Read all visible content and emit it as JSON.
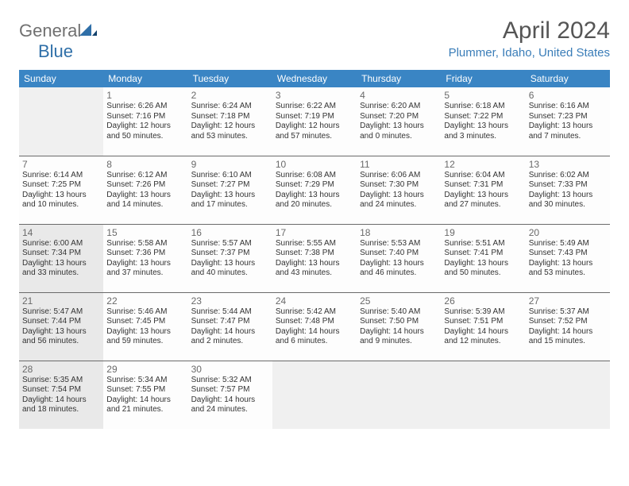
{
  "brand": {
    "general": "General",
    "blue": "Blue"
  },
  "title": "April 2024",
  "location": "Plummer, Idaho, United States",
  "colors": {
    "header_bg": "#3a85c4",
    "accent": "#3a7db8",
    "shaded_bg": "#e9e9e9",
    "rule": "#6a6a6a"
  },
  "weekdays": [
    "Sunday",
    "Monday",
    "Tuesday",
    "Wednesday",
    "Thursday",
    "Friday",
    "Saturday"
  ],
  "cells": [
    {
      "blank": true
    },
    {
      "day": "1",
      "sunrise": "Sunrise: 6:26 AM",
      "sunset": "Sunset: 7:16 PM",
      "daylight": "Daylight: 12 hours and 50 minutes."
    },
    {
      "day": "2",
      "sunrise": "Sunrise: 6:24 AM",
      "sunset": "Sunset: 7:18 PM",
      "daylight": "Daylight: 12 hours and 53 minutes."
    },
    {
      "day": "3",
      "sunrise": "Sunrise: 6:22 AM",
      "sunset": "Sunset: 7:19 PM",
      "daylight": "Daylight: 12 hours and 57 minutes."
    },
    {
      "day": "4",
      "sunrise": "Sunrise: 6:20 AM",
      "sunset": "Sunset: 7:20 PM",
      "daylight": "Daylight: 13 hours and 0 minutes."
    },
    {
      "day": "5",
      "sunrise": "Sunrise: 6:18 AM",
      "sunset": "Sunset: 7:22 PM",
      "daylight": "Daylight: 13 hours and 3 minutes."
    },
    {
      "day": "6",
      "sunrise": "Sunrise: 6:16 AM",
      "sunset": "Sunset: 7:23 PM",
      "daylight": "Daylight: 13 hours and 7 minutes."
    },
    {
      "day": "7",
      "sunrise": "Sunrise: 6:14 AM",
      "sunset": "Sunset: 7:25 PM",
      "daylight": "Daylight: 13 hours and 10 minutes."
    },
    {
      "day": "8",
      "sunrise": "Sunrise: 6:12 AM",
      "sunset": "Sunset: 7:26 PM",
      "daylight": "Daylight: 13 hours and 14 minutes."
    },
    {
      "day": "9",
      "sunrise": "Sunrise: 6:10 AM",
      "sunset": "Sunset: 7:27 PM",
      "daylight": "Daylight: 13 hours and 17 minutes."
    },
    {
      "day": "10",
      "sunrise": "Sunrise: 6:08 AM",
      "sunset": "Sunset: 7:29 PM",
      "daylight": "Daylight: 13 hours and 20 minutes."
    },
    {
      "day": "11",
      "sunrise": "Sunrise: 6:06 AM",
      "sunset": "Sunset: 7:30 PM",
      "daylight": "Daylight: 13 hours and 24 minutes."
    },
    {
      "day": "12",
      "sunrise": "Sunrise: 6:04 AM",
      "sunset": "Sunset: 7:31 PM",
      "daylight": "Daylight: 13 hours and 27 minutes."
    },
    {
      "day": "13",
      "sunrise": "Sunrise: 6:02 AM",
      "sunset": "Sunset: 7:33 PM",
      "daylight": "Daylight: 13 hours and 30 minutes."
    },
    {
      "day": "14",
      "sunrise": "Sunrise: 6:00 AM",
      "sunset": "Sunset: 7:34 PM",
      "daylight": "Daylight: 13 hours and 33 minutes.",
      "shaded": true
    },
    {
      "day": "15",
      "sunrise": "Sunrise: 5:58 AM",
      "sunset": "Sunset: 7:36 PM",
      "daylight": "Daylight: 13 hours and 37 minutes."
    },
    {
      "day": "16",
      "sunrise": "Sunrise: 5:57 AM",
      "sunset": "Sunset: 7:37 PM",
      "daylight": "Daylight: 13 hours and 40 minutes."
    },
    {
      "day": "17",
      "sunrise": "Sunrise: 5:55 AM",
      "sunset": "Sunset: 7:38 PM",
      "daylight": "Daylight: 13 hours and 43 minutes."
    },
    {
      "day": "18",
      "sunrise": "Sunrise: 5:53 AM",
      "sunset": "Sunset: 7:40 PM",
      "daylight": "Daylight: 13 hours and 46 minutes."
    },
    {
      "day": "19",
      "sunrise": "Sunrise: 5:51 AM",
      "sunset": "Sunset: 7:41 PM",
      "daylight": "Daylight: 13 hours and 50 minutes."
    },
    {
      "day": "20",
      "sunrise": "Sunrise: 5:49 AM",
      "sunset": "Sunset: 7:43 PM",
      "daylight": "Daylight: 13 hours and 53 minutes."
    },
    {
      "day": "21",
      "sunrise": "Sunrise: 5:47 AM",
      "sunset": "Sunset: 7:44 PM",
      "daylight": "Daylight: 13 hours and 56 minutes.",
      "shaded": true
    },
    {
      "day": "22",
      "sunrise": "Sunrise: 5:46 AM",
      "sunset": "Sunset: 7:45 PM",
      "daylight": "Daylight: 13 hours and 59 minutes."
    },
    {
      "day": "23",
      "sunrise": "Sunrise: 5:44 AM",
      "sunset": "Sunset: 7:47 PM",
      "daylight": "Daylight: 14 hours and 2 minutes."
    },
    {
      "day": "24",
      "sunrise": "Sunrise: 5:42 AM",
      "sunset": "Sunset: 7:48 PM",
      "daylight": "Daylight: 14 hours and 6 minutes."
    },
    {
      "day": "25",
      "sunrise": "Sunrise: 5:40 AM",
      "sunset": "Sunset: 7:50 PM",
      "daylight": "Daylight: 14 hours and 9 minutes."
    },
    {
      "day": "26",
      "sunrise": "Sunrise: 5:39 AM",
      "sunset": "Sunset: 7:51 PM",
      "daylight": "Daylight: 14 hours and 12 minutes."
    },
    {
      "day": "27",
      "sunrise": "Sunrise: 5:37 AM",
      "sunset": "Sunset: 7:52 PM",
      "daylight": "Daylight: 14 hours and 15 minutes."
    },
    {
      "day": "28",
      "sunrise": "Sunrise: 5:35 AM",
      "sunset": "Sunset: 7:54 PM",
      "daylight": "Daylight: 14 hours and 18 minutes.",
      "shaded": true
    },
    {
      "day": "29",
      "sunrise": "Sunrise: 5:34 AM",
      "sunset": "Sunset: 7:55 PM",
      "daylight": "Daylight: 14 hours and 21 minutes."
    },
    {
      "day": "30",
      "sunrise": "Sunrise: 5:32 AM",
      "sunset": "Sunset: 7:57 PM",
      "daylight": "Daylight: 14 hours and 24 minutes."
    },
    {
      "blank": true
    },
    {
      "blank": true
    },
    {
      "blank": true
    },
    {
      "blank": true
    }
  ]
}
